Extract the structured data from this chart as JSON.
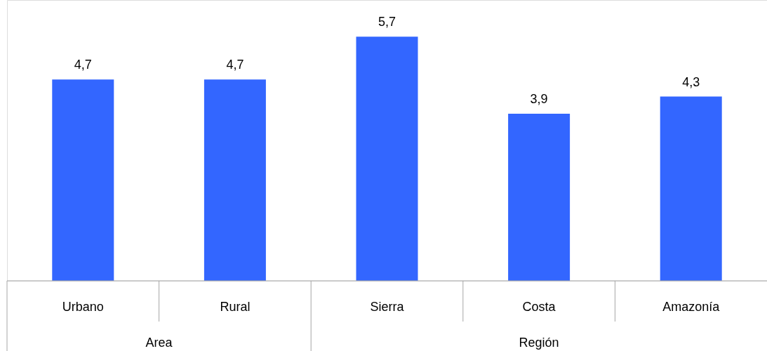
{
  "chart_data": {
    "type": "bar",
    "categories": [
      "Urbano",
      "Rural",
      "Sierra",
      "Costa",
      "Amazonía"
    ],
    "values": [
      4.7,
      4.7,
      5.7,
      3.9,
      4.3
    ],
    "value_labels": [
      "4,7",
      "4,7",
      "5,7",
      "3,9",
      "4,3"
    ],
    "color": "#3366ff",
    "annotations": [
      "Area",
      "Región"
    ]
  }
}
